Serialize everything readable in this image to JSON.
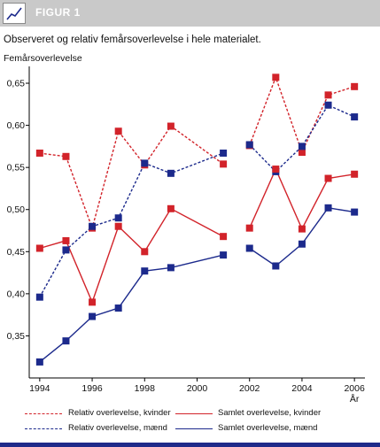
{
  "header": {
    "icon": "chart-icon",
    "title": "FIGUR 1"
  },
  "subtitle": "Observeret og relativ femårsoverlevelse i hele materialet.",
  "colors": {
    "red": "#d2232a",
    "blue": "#1c2a8c",
    "header_bg": "#c9c9c9"
  },
  "chart_data": {
    "type": "line",
    "ylabel": "Femårsoverlevelse",
    "xlabel": "År",
    "ylim": [
      0.3,
      0.67
    ],
    "xlim": [
      1993.6,
      2006.4
    ],
    "yticks": [
      "0,35",
      "0,40",
      "0,45",
      "0,50",
      "0,55",
      "0,60",
      "0,65"
    ],
    "ytick_values": [
      0.35,
      0.4,
      0.45,
      0.5,
      0.55,
      0.6,
      0.65
    ],
    "xticks": [
      "1994",
      "1996",
      "1998",
      "2000",
      "2002",
      "2004",
      "2006"
    ],
    "xtick_values": [
      1994,
      1996,
      1998,
      2000,
      2002,
      2004,
      2006
    ],
    "grid": false,
    "legend_position": "bottom",
    "series": [
      {
        "name": "Relativ overlevelse, kvinder",
        "color": "red",
        "dash": true,
        "segments": [
          {
            "x": [
              1994,
              1995,
              1996,
              1997,
              1998,
              1999,
              2001
            ],
            "y": [
              0.567,
              0.563,
              0.478,
              0.593,
              0.553,
              0.599,
              0.554
            ]
          },
          {
            "x": [
              2002,
              2003,
              2004,
              2005,
              2006
            ],
            "y": [
              0.576,
              0.657,
              0.568,
              0.636,
              0.646
            ]
          }
        ]
      },
      {
        "name": "Relativ overlevelse, mænd",
        "color": "blue",
        "dash": true,
        "segments": [
          {
            "x": [
              1994,
              1995,
              1996,
              1997,
              1998,
              1999,
              2001
            ],
            "y": [
              0.396,
              0.452,
              0.48,
              0.49,
              0.555,
              0.543,
              0.567
            ]
          },
          {
            "x": [
              2002,
              2003,
              2004,
              2005,
              2006
            ],
            "y": [
              0.577,
              0.545,
              0.575,
              0.624,
              0.61
            ]
          }
        ]
      },
      {
        "name": "Samlet overlevelse, kvinder",
        "color": "red",
        "dash": false,
        "segments": [
          {
            "x": [
              1994,
              1995,
              1996,
              1997,
              1998,
              1999,
              2001
            ],
            "y": [
              0.454,
              0.463,
              0.39,
              0.48,
              0.45,
              0.501,
              0.468
            ]
          },
          {
            "x": [
              2002,
              2003,
              2004,
              2005,
              2006
            ],
            "y": [
              0.478,
              0.548,
              0.477,
              0.537,
              0.542
            ]
          }
        ]
      },
      {
        "name": "Samlet overlevelse, mænd",
        "color": "blue",
        "dash": false,
        "segments": [
          {
            "x": [
              1994,
              1995,
              1996,
              1997,
              1998,
              1999,
              2001
            ],
            "y": [
              0.319,
              0.344,
              0.373,
              0.383,
              0.427,
              0.431,
              0.446
            ]
          },
          {
            "x": [
              2002,
              2003,
              2004,
              2005,
              2006
            ],
            "y": [
              0.454,
              0.433,
              0.459,
              0.502,
              0.497
            ]
          }
        ]
      }
    ]
  }
}
